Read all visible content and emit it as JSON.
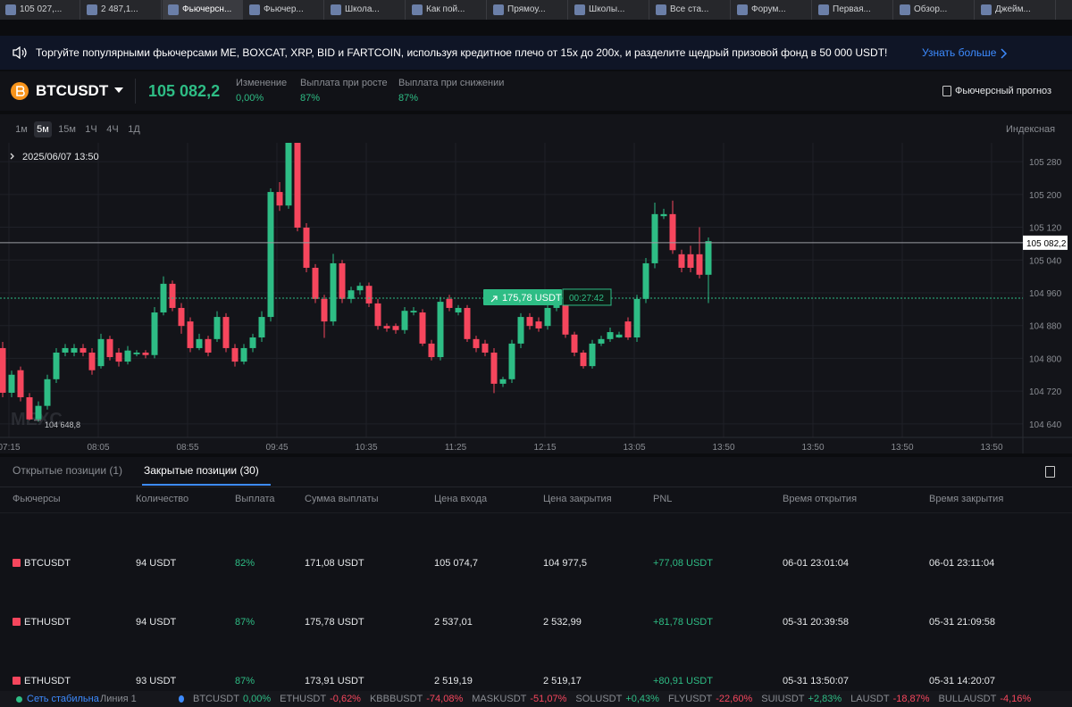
{
  "browser_tabs": [
    "105 027,...",
    "2 487,1...",
    "Фьючерсн...",
    "Фьючер...",
    "Школа...",
    "Как пой...",
    "Прямоу...",
    "Школы...",
    "Все ста...",
    "Форум...",
    "Первая...",
    "Обзор...",
    "Джейм..."
  ],
  "active_tab": 2,
  "banner": {
    "text": "Торгуйте популярными фьючерсами ME, BOXCAT, XRP, BID и FARTCOIN, используя кредитное плечо от 15x до 200x, и разделите щедрый призовой фонд в 50 000 USDT!",
    "link": "Узнать больше"
  },
  "ticker": {
    "symbol": "BTCUSDT",
    "price": "105 082,2",
    "stats": [
      {
        "label": "Изменение",
        "value": "0,00%"
      },
      {
        "label": "Выплата при росте",
        "value": "87%"
      },
      {
        "label": "Выплата при снижении",
        "value": "87%"
      }
    ],
    "forecast": "Фьючерсный прогноз"
  },
  "chart_controls": {
    "timeframes": [
      "1м",
      "5м",
      "15м",
      "1Ч",
      "4Ч",
      "1Д"
    ],
    "active": 1,
    "price_type": "Индексная"
  },
  "chart_data": {
    "type": "candlestick",
    "date_label": "2025/06/07 13:50",
    "watermark": "MEXC",
    "up_color": "#2ebd85",
    "down_color": "#f6465d",
    "open": [
      104825,
      104716,
      104771,
      104705,
      104651,
      104684,
      104749,
      104814,
      104814,
      104825,
      104814,
      104781,
      104847,
      104814,
      104792,
      104810,
      104814,
      104808,
      104912,
      104982,
      104923,
      104890,
      104825,
      104847,
      104847,
      104901,
      104825,
      104792,
      104825,
      104851,
      104901,
      105206,
      105173,
      105326,
      105119,
      105021,
      104945,
      104890,
      105032,
      104945,
      104966,
      104977,
      104934,
      104879,
      104879,
      104869,
      104912,
      104912,
      104836,
      104803,
      104945,
      104912,
      104923,
      104847,
      104836,
      104814,
      104738,
      104749,
      104836,
      104901,
      104890,
      104879,
      104923,
      104934,
      104858,
      104814,
      104781,
      104836,
      104847,
      104851,
      104890,
      104851,
      104945,
      105032,
      105147,
      105152,
      105054,
      105054,
      105054,
      105004
    ],
    "high": [
      104840,
      104770,
      104780,
      104715,
      104695,
      104760,
      104825,
      104835,
      104835,
      104835,
      104825,
      104860,
      104855,
      104825,
      104830,
      104820,
      104820,
      104925,
      105000,
      104990,
      104935,
      104900,
      104860,
      104855,
      104915,
      104910,
      104835,
      104835,
      104860,
      104915,
      105215,
      105230,
      105326,
      105326,
      105130,
      105030,
      104955,
      105055,
      105040,
      104975,
      104985,
      104985,
      104945,
      104885,
      104885,
      104925,
      104925,
      104920,
      104845,
      104950,
      104955,
      104930,
      104930,
      104855,
      104845,
      104825,
      104755,
      104845,
      104910,
      104910,
      104900,
      104930,
      104945,
      104940,
      104865,
      104820,
      104845,
      104855,
      104875,
      104865,
      104900,
      104955,
      105045,
      105180,
      105165,
      105185,
      105065,
      105075,
      105120,
      105095
    ],
    "low": [
      104705,
      104705,
      104695,
      104649,
      104645,
      104675,
      104740,
      104805,
      104805,
      104805,
      104760,
      104775,
      104795,
      104780,
      104785,
      104805,
      104800,
      104800,
      104905,
      104915,
      104860,
      104815,
      104820,
      104805,
      104840,
      104815,
      104780,
      104785,
      104815,
      104840,
      104890,
      105160,
      105165,
      105110,
      105010,
      104935,
      104850,
      104880,
      104935,
      104935,
      104955,
      104925,
      104870,
      104865,
      104860,
      104860,
      104905,
      104830,
      104795,
      104795,
      104915,
      104905,
      104840,
      104815,
      104805,
      104715,
      104730,
      104740,
      104825,
      104870,
      104865,
      104870,
      104915,
      104850,
      104805,
      104775,
      104775,
      104830,
      104840,
      104850,
      104845,
      104840,
      104935,
      105020,
      105140,
      105055,
      105010,
      105010,
      104995,
      104935
    ],
    "close": [
      104716,
      104760,
      104705,
      104651,
      104684,
      104749,
      104814,
      104825,
      104825,
      104814,
      104771,
      104847,
      104803,
      104792,
      104819,
      104814,
      104808,
      104912,
      104982,
      104923,
      104879,
      104825,
      104847,
      104814,
      104901,
      104825,
      104792,
      104825,
      104851,
      104901,
      105206,
      105173,
      105326,
      105119,
      105021,
      104945,
      104890,
      105032,
      104945,
      104966,
      104977,
      104934,
      104879,
      104873,
      104869,
      104916,
      104916,
      104836,
      104803,
      104938,
      104923,
      104923,
      104847,
      104825,
      104814,
      104738,
      104749,
      104836,
      104901,
      104879,
      104873,
      104923,
      104934,
      104858,
      104814,
      104781,
      104836,
      104847,
      104864,
      104858,
      104851,
      104945,
      105032,
      105152,
      105152,
      105064,
      105021,
      105021,
      105004,
      105086
    ],
    "ylim": [
      104607,
      105326
    ],
    "yticks": [
      {
        "value": 105280,
        "label": "105 280"
      },
      {
        "value": 105200,
        "label": "105 200"
      },
      {
        "value": 105120,
        "label": "105 120"
      },
      {
        "value": 105040,
        "label": "105 040"
      },
      {
        "value": 104960,
        "label": "104 960"
      },
      {
        "value": 104880,
        "label": "104 880"
      },
      {
        "value": 104800,
        "label": "104 800"
      },
      {
        "value": 104720,
        "label": "104 720"
      },
      {
        "value": 104640,
        "label": "104 640"
      }
    ],
    "grid": true,
    "price_line": {
      "value": 105082.2,
      "label": "105 082,2"
    },
    "low_label": {
      "value": 104648.8,
      "label": "104 648,8"
    },
    "position": {
      "entry": 104947,
      "amount": "175,78 USDT",
      "timer": "00:27:42"
    },
    "x_axis_labels": [
      "07:15",
      "08:05",
      "08:55",
      "09:45",
      "10:35",
      "11:25",
      "12:15",
      "13:05",
      "13:50",
      "13:50",
      "13:50",
      "13:50"
    ]
  },
  "table": {
    "tabs": [
      "Открытые позиции (1)",
      "Закрытые позиции (30)"
    ],
    "active_tab": 1,
    "headers": [
      "Фьючерсы",
      "Количество",
      "Выплата",
      "Сумма выплаты",
      "Цена входа",
      "Цена закрытия",
      "PNL",
      "Время открытия",
      "Время закрытия"
    ],
    "rows": [
      [
        "BTCUSDT",
        "94 USDT",
        "82%",
        "171,08 USDT",
        "105 074,7",
        "104 977,5",
        "+77,08 USDT",
        "06-01 23:01:04",
        "06-01 23:11:04"
      ],
      [
        "ETHUSDT",
        "94 USDT",
        "87%",
        "175,78 USDT",
        "2 537,01",
        "2 532,99",
        "+81,78 USDT",
        "05-31 20:39:58",
        "05-31 21:09:58"
      ],
      [
        "ETHUSDT",
        "93 USDT",
        "87%",
        "173,91 USDT",
        "2 519,19",
        "2 519,17",
        "+80,91 USDT",
        "05-31 13:50:07",
        "05-31 14:20:07"
      ]
    ]
  },
  "status_bar": {
    "network": "Сеть стабильна",
    "line": "Линия 1",
    "tickers": [
      {
        "symbol": "BTCUSDT",
        "change": "0,00%"
      },
      {
        "symbol": "ETHUSDT",
        "change": "-0,62%"
      },
      {
        "symbol": "KBBBUSDT",
        "change": "-74,08%"
      },
      {
        "symbol": "MASKUSDT",
        "change": "-51,07%"
      },
      {
        "symbol": "SOLUSDT",
        "change": "+0,43%"
      },
      {
        "symbol": "FLYUSDT",
        "change": "-22,60%"
      },
      {
        "symbol": "SUIUSDT",
        "change": "+2,83%"
      },
      {
        "symbol": "LAUSDT",
        "change": "-18,87%"
      },
      {
        "symbol": "BULLAUSDT",
        "change": "-4,16%"
      }
    ]
  }
}
